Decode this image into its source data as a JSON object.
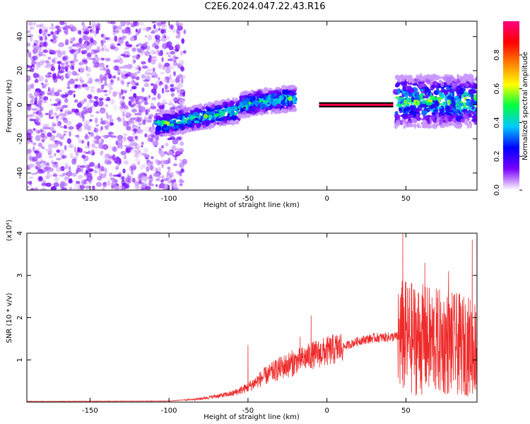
{
  "title": "C2E6.2024.047.22.43.R16",
  "chart_data": [
    {
      "type": "heatmap",
      "xlabel": "Height of straight line (km)",
      "ylabel": "Frequency (Hz)",
      "xlim": [
        -190,
        95
      ],
      "ylim": [
        -50,
        49
      ],
      "xticks": [
        -150,
        -100,
        -50,
        0,
        50
      ],
      "yticks": [
        -40,
        -20,
        0,
        20,
        40
      ],
      "colorbar": {
        "label": "Normalized spectral amplitude",
        "range": [
          0.0,
          1.0
        ],
        "ticks": [
          "0.0",
          "0.2",
          "0.4",
          "0.6",
          "0.8"
        ],
        "colors": [
          "#ffffff",
          "#7a00ff",
          "#0000ff",
          "#00c8ff",
          "#00ff40",
          "#ffff00",
          "#ff8000",
          "#ff0000",
          "#ff0080"
        ]
      },
      "features": [
        {
          "x_range": [
            -190,
            -90
          ],
          "y_range": [
            -50,
            49
          ],
          "amplitude": 0.1
        },
        {
          "x_range": [
            -108,
            -55
          ],
          "y_center_start": -12,
          "y_center_end": -3,
          "amplitude": 0.5
        },
        {
          "x_range": [
            -55,
            -20
          ],
          "y_center_start": 0,
          "y_center_end": 4,
          "amplitude": 0.5
        },
        {
          "x_range": [
            -5,
            42
          ],
          "y_center": 0,
          "amplitude": 0.95
        },
        {
          "x_range": [
            43,
            95
          ],
          "y_center": 2,
          "amplitude": 0.3
        }
      ]
    },
    {
      "type": "line",
      "xlabel": "Height of straight line (km)",
      "ylabel": "SNR (10 * v/v)",
      "scale_label": "(x10⁴)",
      "xlim": [
        -190,
        95
      ],
      "ylim": [
        0,
        4
      ],
      "xticks": [
        -150,
        -100,
        -50,
        0,
        50
      ],
      "yticks": [
        1,
        2,
        3,
        4
      ],
      "series_color": "#ee2a2a",
      "envelope": [
        {
          "x": -190,
          "y": 0.01
        },
        {
          "x": -100,
          "y": 0.02
        },
        {
          "x": -80,
          "y": 0.08
        },
        {
          "x": -60,
          "y": 0.2
        },
        {
          "x": -50,
          "y": 0.35
        },
        {
          "x": -40,
          "y": 0.6
        },
        {
          "x": -30,
          "y": 0.8
        },
        {
          "x": -20,
          "y": 0.95
        },
        {
          "x": -10,
          "y": 1.1
        },
        {
          "x": 0,
          "y": 1.2
        },
        {
          "x": 10,
          "y": 1.3
        },
        {
          "x": 20,
          "y": 1.45
        },
        {
          "x": 30,
          "y": 1.52
        },
        {
          "x": 45,
          "y": 1.55
        },
        {
          "x": 95,
          "y": 1.3
        }
      ],
      "peaks": [
        {
          "x": -50,
          "y": 1.35
        },
        {
          "x": -17,
          "y": 1.55
        },
        {
          "x": -10,
          "y": 2.05
        },
        {
          "x": 48,
          "y": 4.0
        },
        {
          "x": 62,
          "y": 3.3
        },
        {
          "x": 77,
          "y": 3.1
        },
        {
          "x": 92,
          "y": 3.85
        }
      ]
    }
  ]
}
